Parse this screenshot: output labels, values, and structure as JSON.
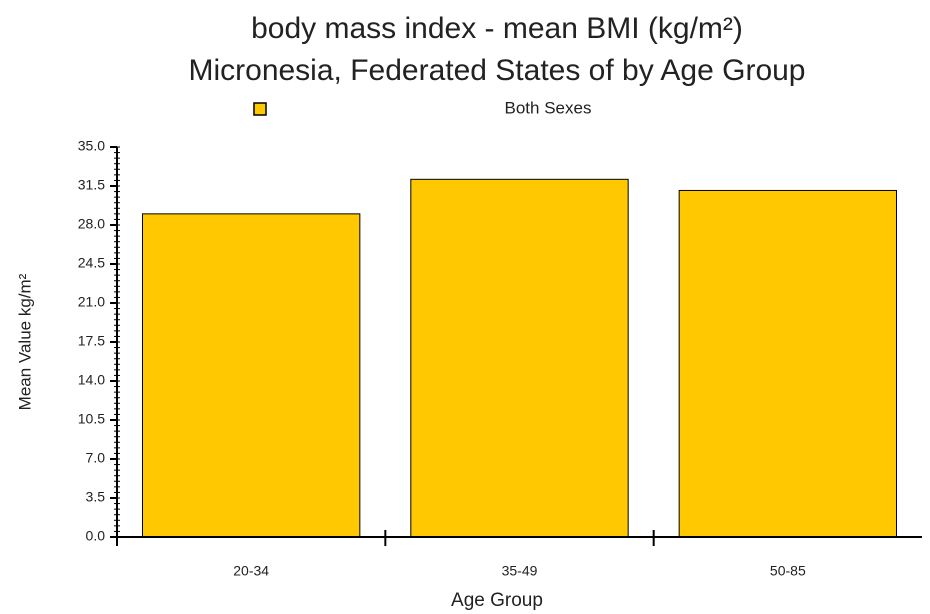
{
  "chart_data": {
    "type": "bar",
    "title": "body mass index - mean BMI (kg/m²)",
    "subtitle": "Micronesia, Federated States of by Age Group",
    "x_label": "Age Group",
    "y_label": "Mean Value kg/m²",
    "categories": [
      "20-34",
      "35-49",
      "50-85"
    ],
    "series": [
      {
        "name": "Both Sexes",
        "color": "#ffc800",
        "values": [
          29.0,
          32.1,
          31.1
        ]
      }
    ],
    "ylim": [
      0,
      35
    ],
    "yticks": [
      {
        "value": 0,
        "label": "0.0"
      },
      3.5,
      {
        "value": 7,
        "label": "7.0"
      },
      10.5,
      {
        "value": 14,
        "label": "14.0"
      },
      17.5,
      {
        "value": 21,
        "label": "21.0"
      },
      24.5,
      {
        "value": 28,
        "label": "28.0"
      },
      31.5,
      {
        "value": 35,
        "label": "35.0"
      }
    ],
    "legend": "top"
  }
}
